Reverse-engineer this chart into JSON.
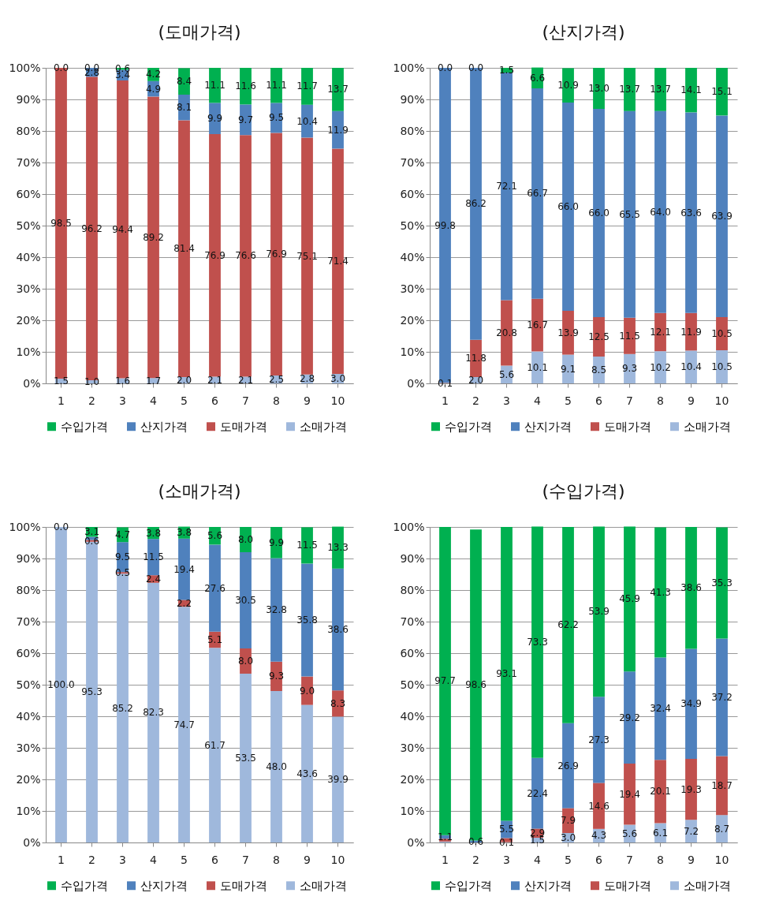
{
  "chart_data": [
    {
      "type": "bar",
      "title": "(도매가격)",
      "stacked": true,
      "grid": "y",
      "legend": "bottom",
      "categories": [
        "1",
        "2",
        "3",
        "4",
        "5",
        "6",
        "7",
        "8",
        "9",
        "10"
      ],
      "ylim": [
        0,
        100
      ],
      "yticks": [
        {
          "value": 0,
          "label": "0%"
        },
        {
          "value": 10,
          "label": "10%"
        },
        {
          "value": 20,
          "label": "20%"
        },
        {
          "value": 30,
          "label": "30%"
        },
        {
          "value": 40,
          "label": "40%"
        },
        {
          "value": 50,
          "label": "50%"
        },
        {
          "value": 60,
          "label": "60%"
        },
        {
          "value": 70,
          "label": "70%"
        },
        {
          "value": 80,
          "label": "80%"
        },
        {
          "value": 90,
          "label": "90%"
        },
        {
          "value": 100,
          "label": "100%"
        }
      ],
      "series": [
        {
          "name": "소매가격",
          "color": "#9fb8dc",
          "values": [
            1.5,
            1.0,
            1.6,
            1.7,
            2.0,
            2.1,
            2.1,
            2.5,
            2.8,
            3.0
          ],
          "value_labels": [
            "1.5",
            "1.0",
            "1.6",
            "1.7",
            "2.0",
            "2.1",
            "2.1",
            "2.5",
            "2.8",
            "3.0"
          ]
        },
        {
          "name": "도매가격",
          "color": "#c0504d",
          "values": [
            98.5,
            96.2,
            94.4,
            89.2,
            81.4,
            76.9,
            76.6,
            76.9,
            75.1,
            71.4
          ],
          "value_labels": [
            "98.5",
            "96.2",
            "94.4",
            "89.2",
            "81.4",
            "76.9",
            "76.6",
            "76.9",
            "75.1",
            "71.4"
          ]
        },
        {
          "name": "산지가격",
          "color": "#4f81bd",
          "values": [
            0.0,
            2.8,
            3.4,
            4.9,
            8.1,
            9.9,
            9.7,
            9.5,
            10.4,
            11.9
          ],
          "value_labels": [
            null,
            "2.8",
            "3.4",
            "4.9",
            "8.1",
            "9.9",
            "9.7",
            "9.5",
            "10.4",
            "11.9"
          ]
        },
        {
          "name": "수입가격",
          "color": "#00b050",
          "values": [
            0.0,
            0.0,
            0.6,
            4.2,
            8.4,
            11.1,
            11.6,
            11.1,
            11.7,
            13.7
          ],
          "value_labels": [
            "0.0",
            "0.0",
            "0.6",
            "4.2",
            "8.4",
            "11.1",
            "11.6",
            "11.1",
            "11.7",
            "13.7"
          ]
        }
      ]
    },
    {
      "type": "bar",
      "title": "(산지가격)",
      "stacked": true,
      "grid": "y",
      "legend": "bottom",
      "categories": [
        "1",
        "2",
        "3",
        "4",
        "5",
        "6",
        "7",
        "8",
        "9",
        "10"
      ],
      "ylim": [
        0,
        100
      ],
      "yticks": [
        {
          "value": 0,
          "label": "0%"
        },
        {
          "value": 10,
          "label": "10%"
        },
        {
          "value": 20,
          "label": "20%"
        },
        {
          "value": 30,
          "label": "30%"
        },
        {
          "value": 40,
          "label": "40%"
        },
        {
          "value": 50,
          "label": "50%"
        },
        {
          "value": 60,
          "label": "60%"
        },
        {
          "value": 70,
          "label": "70%"
        },
        {
          "value": 80,
          "label": "80%"
        },
        {
          "value": 90,
          "label": "90%"
        },
        {
          "value": 100,
          "label": "100%"
        }
      ],
      "series": [
        {
          "name": "소매가격",
          "color": "#9fb8dc",
          "values": [
            0.1,
            2.0,
            5.6,
            10.1,
            9.1,
            8.5,
            9.3,
            10.2,
            10.4,
            10.5
          ],
          "value_labels": [
            "0.1",
            "2.0",
            "5.6",
            "10.1",
            "9.1",
            "8.5",
            "9.3",
            "10.2",
            "10.4",
            "10.5"
          ]
        },
        {
          "name": "도매가격",
          "color": "#c0504d",
          "values": [
            0.1,
            11.8,
            20.8,
            16.7,
            13.9,
            12.5,
            11.5,
            12.1,
            11.9,
            10.5
          ],
          "value_labels": [
            null,
            "11.8",
            "20.8",
            "16.7",
            "13.9",
            "12.5",
            "11.5",
            "12.1",
            "11.9",
            "10.5"
          ]
        },
        {
          "name": "산지가격",
          "color": "#4f81bd",
          "values": [
            99.8,
            86.2,
            72.1,
            66.7,
            66.0,
            66.0,
            65.5,
            64.0,
            63.6,
            63.9
          ],
          "value_labels": [
            "99.8",
            "86.2",
            "72.1",
            "66.7",
            "66.0",
            "66.0",
            "65.5",
            "64.0",
            "63.6",
            "63.9"
          ]
        },
        {
          "name": "수입가격",
          "color": "#00b050",
          "values": [
            0.0,
            0.0,
            1.5,
            6.6,
            10.9,
            13.0,
            13.7,
            13.7,
            14.1,
            15.1
          ],
          "value_labels": [
            "0.0",
            "0.0",
            "1.5",
            "6.6",
            "10.9",
            "13.0",
            "13.7",
            "13.7",
            "14.1",
            "15.1"
          ]
        }
      ]
    },
    {
      "type": "bar",
      "title": "(소매가격)",
      "stacked": true,
      "grid": "y",
      "legend": "bottom",
      "categories": [
        "1",
        "2",
        "3",
        "4",
        "5",
        "6",
        "7",
        "8",
        "9",
        "10"
      ],
      "ylim": [
        0,
        100
      ],
      "yticks": [
        {
          "value": 0,
          "label": "0%"
        },
        {
          "value": 10,
          "label": "10%"
        },
        {
          "value": 20,
          "label": "20%"
        },
        {
          "value": 30,
          "label": "30%"
        },
        {
          "value": 40,
          "label": "40%"
        },
        {
          "value": 50,
          "label": "50%"
        },
        {
          "value": 60,
          "label": "60%"
        },
        {
          "value": 70,
          "label": "70%"
        },
        {
          "value": 80,
          "label": "80%"
        },
        {
          "value": 90,
          "label": "90%"
        },
        {
          "value": 100,
          "label": "100%"
        }
      ],
      "series": [
        {
          "name": "소매가격",
          "color": "#9fb8dc",
          "values": [
            100.0,
            95.3,
            85.2,
            82.3,
            74.7,
            61.7,
            53.5,
            48.0,
            43.6,
            39.9
          ],
          "value_labels": [
            "100.0",
            "95.3",
            "85.2",
            "82.3",
            "74.7",
            "61.7",
            "53.5",
            "48.0",
            "43.6",
            "39.9"
          ]
        },
        {
          "name": "도매가격",
          "color": "#c0504d",
          "values": [
            0.0,
            0.6,
            0.5,
            2.4,
            2.2,
            5.1,
            8.0,
            9.3,
            9.0,
            8.3
          ],
          "value_labels": [
            null,
            "0.6",
            "0.5",
            "2.4",
            "2.2",
            "5.1",
            "8.0",
            "9.3",
            "9.0",
            "8.3"
          ]
        },
        {
          "name": "산지가격",
          "color": "#4f81bd",
          "values": [
            0.0,
            1.0,
            9.5,
            11.5,
            19.4,
            27.6,
            30.5,
            32.8,
            35.8,
            38.6
          ],
          "value_labels": [
            null,
            null,
            "9.5",
            "11.5",
            "19.4",
            "27.6",
            "30.5",
            "32.8",
            "35.8",
            "38.6"
          ]
        },
        {
          "name": "수입가격",
          "color": "#00b050",
          "values": [
            0.0,
            3.1,
            4.7,
            3.8,
            3.8,
            5.6,
            8.0,
            9.9,
            11.5,
            13.3
          ],
          "value_labels": [
            "0.0",
            "3.1",
            "4.7",
            "3.8",
            "3.8",
            "5.6",
            "8.0",
            "9.9",
            "11.5",
            "13.3"
          ]
        }
      ]
    },
    {
      "type": "bar",
      "title": "(수입가격)",
      "stacked": true,
      "grid": "y",
      "legend": "bottom",
      "categories": [
        "1",
        "2",
        "3",
        "4",
        "5",
        "6",
        "7",
        "8",
        "9",
        "10"
      ],
      "ylim": [
        0,
        100
      ],
      "yticks": [
        {
          "value": 0,
          "label": "0%"
        },
        {
          "value": 10,
          "label": "10%"
        },
        {
          "value": 20,
          "label": "20%"
        },
        {
          "value": 30,
          "label": "30%"
        },
        {
          "value": 40,
          "label": "40%"
        },
        {
          "value": 50,
          "label": "50%"
        },
        {
          "value": 60,
          "label": "60%"
        },
        {
          "value": 70,
          "label": "70%"
        },
        {
          "value": 80,
          "label": "80%"
        },
        {
          "value": 90,
          "label": "90%"
        },
        {
          "value": 100,
          "label": "100%"
        }
      ],
      "series": [
        {
          "name": "소매가격",
          "color": "#9fb8dc",
          "values": [
            0.3,
            null,
            0.1,
            1.5,
            3.0,
            4.3,
            5.6,
            6.1,
            7.2,
            8.7
          ],
          "value_labels": [
            null,
            null,
            "0.1",
            "1.5",
            "3.0",
            "4.3",
            "5.6",
            "6.1",
            "7.2",
            "8.7"
          ]
        },
        {
          "name": "도매가격",
          "color": "#c0504d",
          "values": [
            0.9,
            null,
            1.3,
            2.9,
            7.9,
            14.6,
            19.4,
            20.1,
            19.3,
            18.7
          ],
          "value_labels": [
            null,
            null,
            null,
            "2.9",
            "7.9",
            "14.6",
            "19.4",
            "20.1",
            "19.3",
            "18.7"
          ]
        },
        {
          "name": "산지가격",
          "color": "#4f81bd",
          "values": [
            1.1,
            0.6,
            5.5,
            22.4,
            26.9,
            27.3,
            29.2,
            32.4,
            34.9,
            37.2
          ],
          "value_labels": [
            "1.1",
            "0.6",
            "5.5",
            "22.4",
            "26.9",
            "27.3",
            "29.2",
            "32.4",
            "34.9",
            "37.2"
          ]
        },
        {
          "name": "수입가격",
          "color": "#00b050",
          "values": [
            97.7,
            98.6,
            93.1,
            73.3,
            62.2,
            53.9,
            45.9,
            41.3,
            38.6,
            35.3
          ],
          "value_labels": [
            "97.7",
            "98.6",
            "93.1",
            "73.3",
            "62.2",
            "53.9",
            "45.9",
            "41.3",
            "38.6",
            "35.3"
          ]
        }
      ]
    }
  ]
}
